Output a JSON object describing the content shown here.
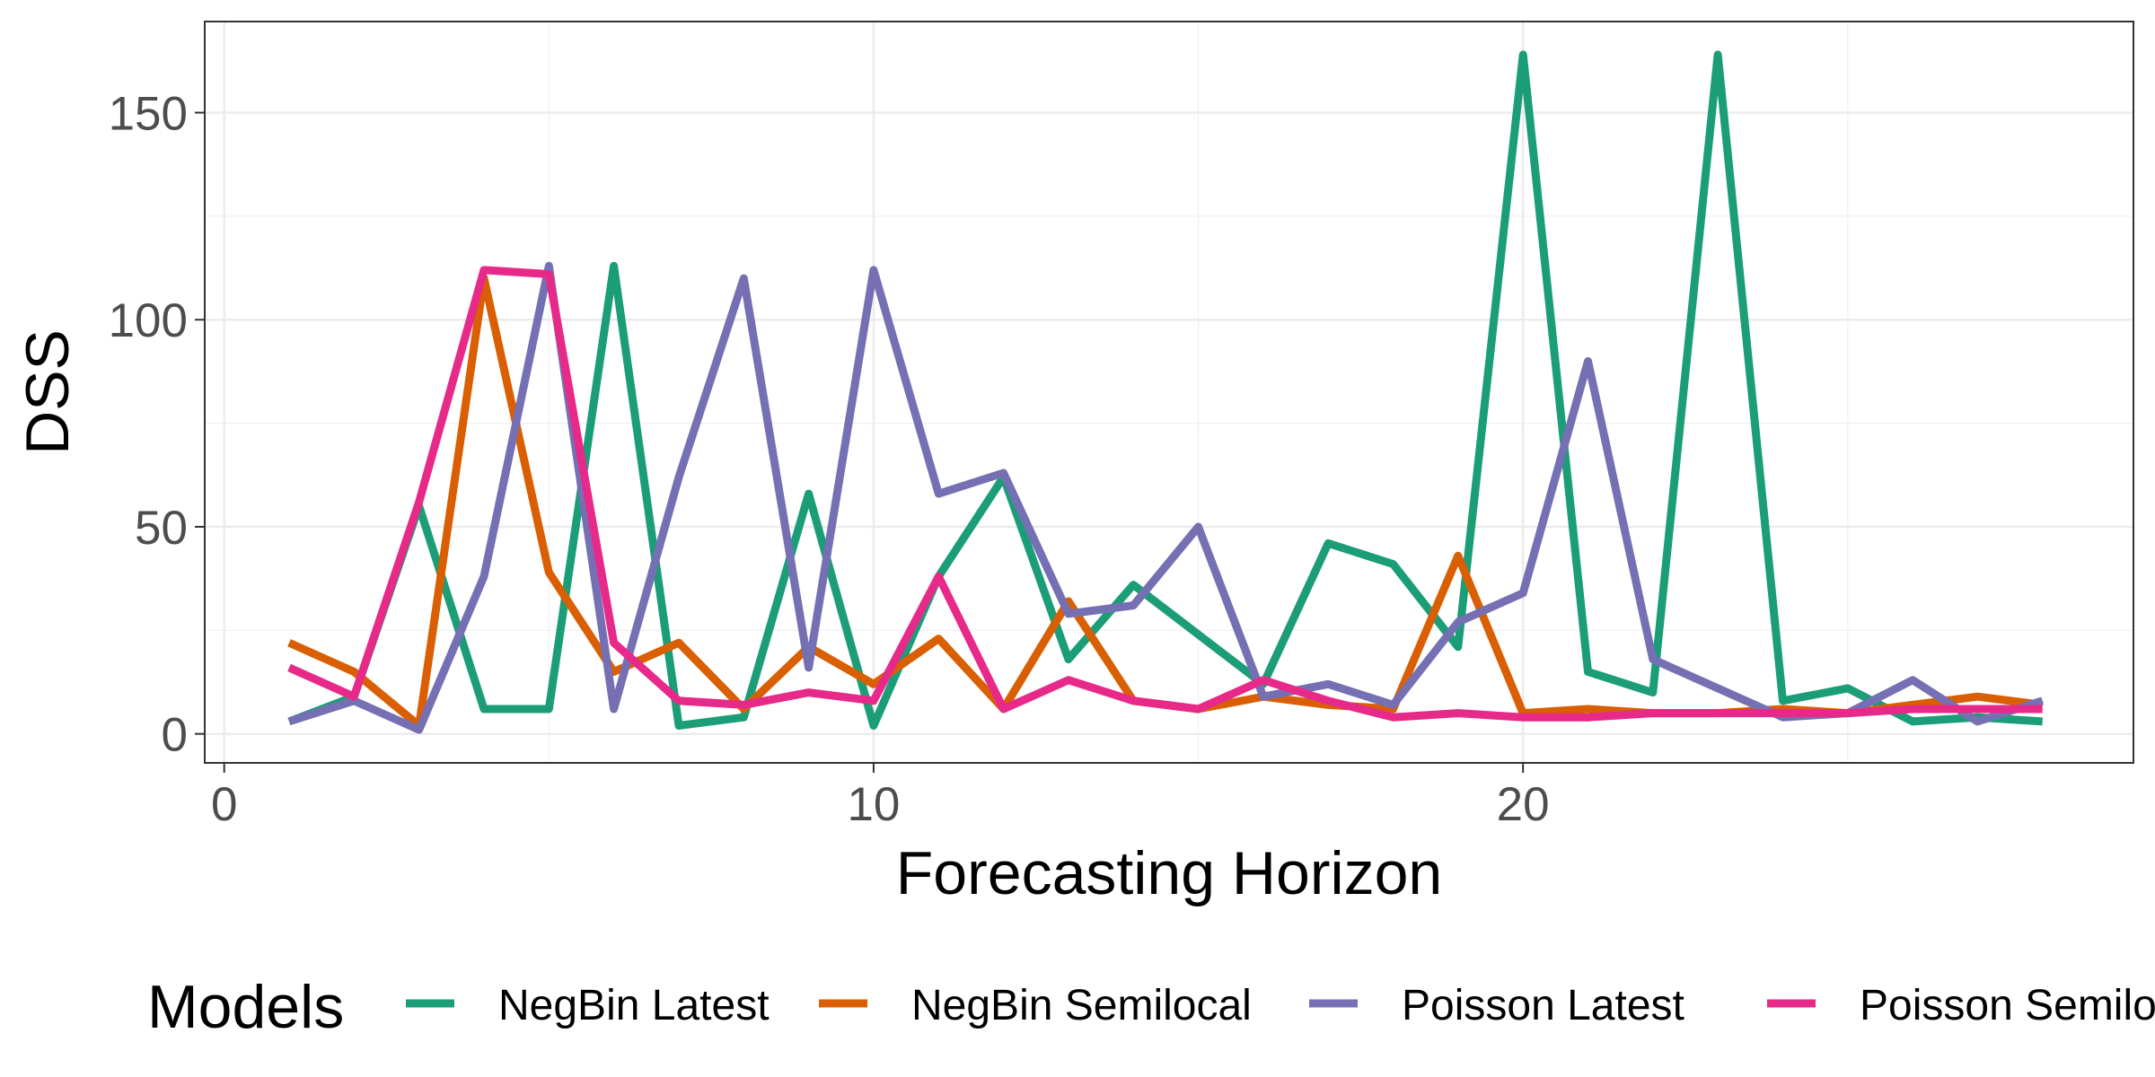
{
  "chart_data": {
    "type": "line",
    "xlabel": "Forecasting Horizon",
    "ylabel": "DSS",
    "xlim": [
      -0.3,
      29.4
    ],
    "ylim": [
      -7,
      172
    ],
    "x_ticks": [
      0,
      10,
      20
    ],
    "y_ticks": [
      0,
      50,
      100,
      150
    ],
    "x_minor_ticks": [
      5,
      15,
      25
    ],
    "y_minor_ticks": [
      25,
      75,
      125
    ],
    "grid": true,
    "legend_title": "Models",
    "legend_position": "bottom",
    "x": [
      1,
      2,
      3,
      4,
      5,
      6,
      7,
      8,
      9,
      10,
      11,
      12,
      13,
      14,
      15,
      16,
      17,
      18,
      19,
      20,
      21,
      22,
      23,
      24,
      25,
      26,
      27,
      28
    ],
    "series": [
      {
        "name": "NegBin Latest",
        "color": "#1B9E77",
        "values": [
          3,
          9,
          55,
          6,
          6,
          113,
          2,
          4,
          58,
          2,
          38,
          62,
          18,
          36,
          24,
          12,
          46,
          41,
          21,
          164,
          15,
          10,
          164,
          8,
          11,
          3,
          4,
          3
        ]
      },
      {
        "name": "NegBin Semilocal",
        "color": "#D95F02",
        "values": [
          22,
          15,
          2,
          110,
          39,
          15,
          22,
          6,
          21,
          12,
          23,
          6,
          32,
          8,
          6,
          9,
          7,
          6,
          43,
          5,
          6,
          5,
          5,
          6,
          5,
          7,
          9,
          7
        ]
      },
      {
        "name": "Poisson Latest",
        "color": "#7570B3",
        "values": [
          3,
          8,
          1,
          38,
          113,
          6,
          62,
          110,
          16,
          112,
          58,
          63,
          29,
          31,
          50,
          9,
          12,
          7,
          27,
          34,
          90,
          18,
          11,
          4,
          5,
          13,
          3,
          8
        ]
      },
      {
        "name": "Poisson Semilocal",
        "color": "#E7298A",
        "values": [
          16,
          9,
          56,
          112,
          111,
          22,
          8,
          7,
          10,
          8,
          38,
          6,
          13,
          8,
          6,
          13,
          8,
          4,
          5,
          4,
          4,
          5,
          5,
          5,
          5,
          6,
          6,
          6
        ]
      }
    ]
  }
}
